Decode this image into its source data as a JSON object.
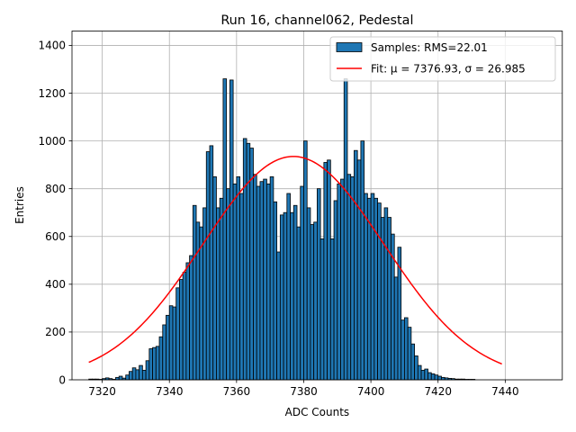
{
  "chart_data": {
    "type": "bar",
    "title": "Run 16, channel062, Pedestal",
    "xlabel": "ADC Counts",
    "ylabel": "Entries",
    "xlim": [
      7311,
      7457
    ],
    "ylim": [
      0,
      1460
    ],
    "xticks": [
      7320,
      7340,
      7360,
      7380,
      7400,
      7420,
      7440
    ],
    "yticks": [
      0,
      200,
      400,
      600,
      800,
      1000,
      1200,
      1400
    ],
    "grid": true,
    "legend_position": "top-right",
    "colors": {
      "bars": "#1f77b4",
      "fit": "#ff0000",
      "edge": "#000000"
    },
    "legend": {
      "samples_label": "Samples: RMS=22.01",
      "fit_label": "Fit: μ = 7376.93, σ = 26.985"
    },
    "histogram": {
      "bin_start": 7316,
      "bin_width": 1,
      "counts": [
        3,
        3,
        3,
        2,
        5,
        8,
        5,
        2,
        10,
        15,
        7,
        20,
        35,
        50,
        42,
        60,
        40,
        80,
        130,
        135,
        140,
        180,
        230,
        270,
        310,
        305,
        385,
        420,
        450,
        490,
        520,
        730,
        660,
        640,
        720,
        955,
        980,
        850,
        720,
        760,
        1260,
        800,
        1255,
        820,
        850,
        780,
        1010,
        990,
        970,
        860,
        810,
        830,
        840,
        820,
        850,
        745,
        535,
        690,
        700,
        780,
        700,
        730,
        640,
        810,
        1000,
        720,
        650,
        660,
        800,
        590,
        910,
        920,
        590,
        750,
        820,
        840,
        1260,
        860,
        850,
        960,
        920,
        1000,
        780,
        760,
        780,
        760,
        740,
        680,
        720,
        680,
        610,
        430,
        555,
        250,
        260,
        220,
        150,
        100,
        60,
        40,
        45,
        30,
        25,
        20,
        15,
        10,
        8,
        6,
        5,
        3,
        3,
        3,
        2,
        2,
        2
      ]
    },
    "fit": {
      "type": "gaussian",
      "mu": 7376.93,
      "sigma": 26.985,
      "amplitude": 935,
      "x_range": [
        7316,
        7439
      ]
    }
  }
}
